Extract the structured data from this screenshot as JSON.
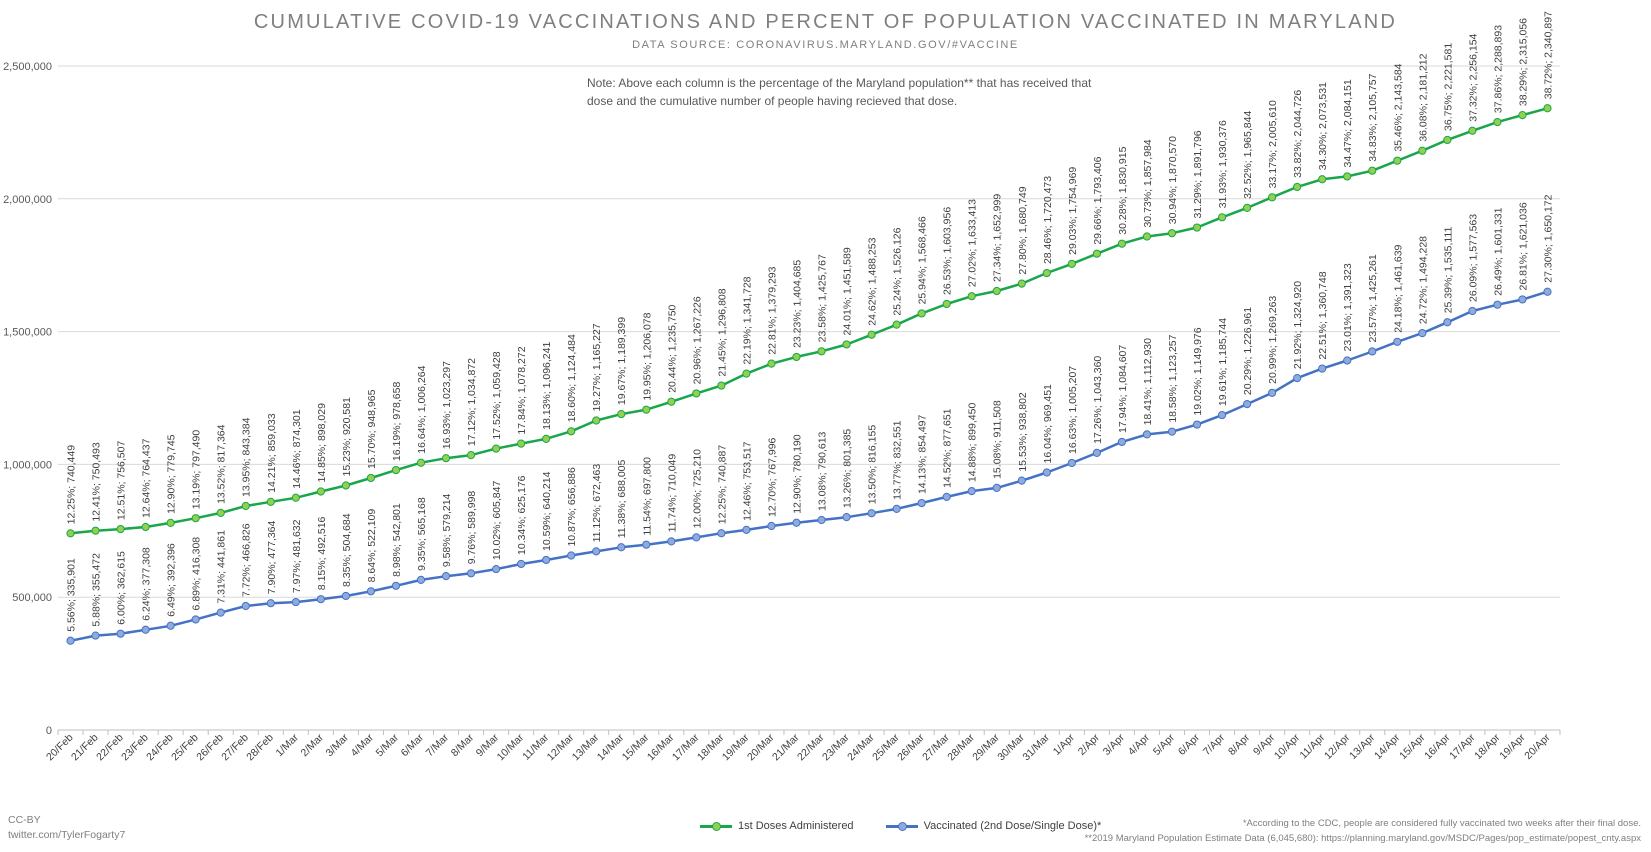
{
  "title": "CUMULATIVE COVID-19 VACCINATIONS AND PERCENT OF POPULATION VACCINATED IN MARYLAND",
  "subtitle": "DATA SOURCE: CORONAVIRUS.MARYLAND.GOV/#VACCINE",
  "note": "Note: Above each column is the percentage of the Maryland population** that has received that dose and the cumulative number of people having recieved that dose.",
  "credit_line1": "CC-BY",
  "credit_line2": "twitter.com/TylerFogarty7",
  "footnote1": "*According to the CDC, people are considered fully vaccinated two weeks after their final dose.",
  "footnote2": "**2019 Maryland Population Estimate Data (6,045,680): https://planning.maryland.gov/MSDC/Pages/pop_estimate/popest_cnty.aspx",
  "colors": {
    "first_line": "#1aa64b",
    "first_marker": "#92d050",
    "second_line": "#4472c4",
    "second_marker": "#8faadc",
    "grid": "#d9d9d9",
    "axis_text": "#595959",
    "label_text": "#404040"
  },
  "chart_data": {
    "type": "line",
    "title": "CUMULATIVE COVID-19 VACCINATIONS AND PERCENT OF POPULATION VACCINATED IN MARYLAND",
    "xlabel": "",
    "ylabel": "",
    "ylim": [
      0,
      2500000
    ],
    "yticks": [
      0,
      500000,
      1000000,
      1500000,
      2000000,
      2500000
    ],
    "ytick_labels": [
      "0",
      "500,000",
      "1,000,000",
      "1,500,000",
      "2,000,000",
      "2,500,000"
    ],
    "grid": true,
    "legend_position": "bottom",
    "categories": [
      "20/Feb",
      "21/Feb",
      "22/Feb",
      "23/Feb",
      "24/Feb",
      "25/Feb",
      "26/Feb",
      "27/Feb",
      "28/Feb",
      "1/Mar",
      "2/Mar",
      "3/Mar",
      "4/Mar",
      "5/Mar",
      "6/Mar",
      "7/Mar",
      "8/Mar",
      "9/Mar",
      "10/Mar",
      "11/Mar",
      "12/Mar",
      "13/Mar",
      "14/Mar",
      "15/Mar",
      "16/Mar",
      "17/Mar",
      "18/Mar",
      "19/Mar",
      "20/Mar",
      "21/Mar",
      "22/Mar",
      "23/Mar",
      "24/Mar",
      "25/Mar",
      "26/Mar",
      "27/Mar",
      "28/Mar",
      "29/Mar",
      "30/Mar",
      "31/Mar",
      "1/Apr",
      "2/Apr",
      "3/Apr",
      "4/Apr",
      "5/Apr",
      "6/Apr",
      "7/Apr",
      "8/Apr",
      "9/Apr",
      "10/Apr",
      "11/Apr",
      "12/Apr",
      "13/Apr",
      "14/Apr",
      "15/Apr",
      "16/Apr",
      "17/Apr",
      "18/Apr",
      "19/Apr",
      "20/Apr"
    ],
    "series": [
      {
        "name": "1st Doses Administered",
        "values": [
          740449,
          750493,
          756507,
          764437,
          779745,
          797490,
          817364,
          843384,
          859033,
          874301,
          898029,
          920581,
          948965,
          978658,
          1006264,
          1023297,
          1034872,
          1059428,
          1078272,
          1096241,
          1124484,
          1165227,
          1189399,
          1206078,
          1235750,
          1267226,
          1296808,
          1341728,
          1379293,
          1404685,
          1425767,
          1451589,
          1488253,
          1526126,
          1568466,
          1603956,
          1633413,
          1652999,
          1680749,
          1720473,
          1754969,
          1793406,
          1830915,
          1857984,
          1870570,
          1891796,
          1930376,
          1965844,
          2005610,
          2044726,
          2073531,
          2084151,
          2105757,
          2143584,
          2181212,
          2221581,
          2256154,
          2288893,
          2315056,
          2340897
        ],
        "labels": [
          "12.25%; 740,449",
          "12.41%; 750,493",
          "12.51%; 756,507",
          "12.64%; 764,437",
          "12.90%; 779,745",
          "13.19%; 797,490",
          "13.52%; 817,364",
          "13.95%; 843,384",
          "14.21%; 859,033",
          "14.46%; 874,301",
          "14.85%; 898,029",
          "15.23%; 920,581",
          "15.70%; 948,965",
          "16.19%; 978,658",
          "16.64%; 1,006,264",
          "16.93%; 1,023,297",
          "17.12%; 1,034,872",
          "17.52%; 1,059,428",
          "17.84%; 1,078,272",
          "18.13%; 1,096,241",
          "18.60%; 1,124,484",
          "19.27%; 1,165,227",
          "19.67%; 1,189,399",
          "19.95%; 1,206,078",
          "20.44%; 1,235,750",
          "20.96%; 1,267,226",
          "21.45%; 1,296,808",
          "22.19%; 1,341,728",
          "22.81%; 1,379,293",
          "23.23%; 1,404,685",
          "23.58%; 1,425,767",
          "24.01%; 1,451,589",
          "24.62%; 1,488,253",
          "25.24%; 1,526,126",
          "25.94%; 1,568,466",
          "26.53%; 1,603,956",
          "27.02%; 1,633,413",
          "27.34%; 1,652,999",
          "27.80%; 1,680,749",
          "28.46%; 1,720,473",
          "29.03%; 1,754,969",
          "29.66%; 1,793,406",
          "30.28%; 1,830,915",
          "30.73%; 1,857,984",
          "30.94%; 1,870,570",
          "31.29%; 1,891,796",
          "31.93%; 1,930,376",
          "32.52%; 1,965,844",
          "33.17%; 2,005,610",
          "33.82%; 2,044,726",
          "34.30%; 2,073,531",
          "34.47%; 2,084,151",
          "34.83%; 2,105,757",
          "35.46%; 2,143,584",
          "36.08%; 2,181,212",
          "36.75%; 2,221,581",
          "37.32%; 2,256,154",
          "37.86%; 2,288,893",
          "38.29%; 2,315,056",
          "38.72%; 2,340,897"
        ]
      },
      {
        "name": "Vaccinated (2nd Dose/Single Dose)*",
        "values": [
          335901,
          355472,
          362615,
          377308,
          392396,
          416308,
          441861,
          466826,
          477364,
          481632,
          492516,
          504684,
          522109,
          542801,
          565168,
          579214,
          589998,
          605847,
          625176,
          640214,
          656886,
          672463,
          688005,
          697800,
          710049,
          725210,
          740887,
          753517,
          767996,
          780190,
          790613,
          801385,
          816155,
          832551,
          854497,
          877651,
          899450,
          911508,
          938802,
          969451,
          1005207,
          1043360,
          1084607,
          1112930,
          1123257,
          1149976,
          1185744,
          1226961,
          1269263,
          1324920,
          1360748,
          1391323,
          1425261,
          1461639,
          1494228,
          1535111,
          1577563,
          1601331,
          1621036,
          1650172
        ],
        "labels": [
          "5.56%; 335,901",
          "5.88%; 355,472",
          "6.00%; 362,615",
          "6.24%; 377,308",
          "6.49%; 392,396",
          "6.89%; 416,308",
          "7.31%; 441,861",
          "7.72%; 466,826",
          "7.90%; 477,364",
          "7.97%; 481,632",
          "8.15%; 492,516",
          "8.35%; 504,684",
          "8.64%; 522,109",
          "8.98%; 542,801",
          "9.35%; 565,168",
          "9.58%; 579,214",
          "9.76%; 589,998",
          "10.02%; 605,847",
          "10.34%; 625,176",
          "10.59%; 640,214",
          "10.87%; 656,886",
          "11.12%; 672,463",
          "11.38%; 688,005",
          "11.54%; 697,800",
          "11.74%; 710,049",
          "12.00%; 725,210",
          "12.25%; 740,887",
          "12.46%; 753,517",
          "12.70%; 767,996",
          "12.90%; 780,190",
          "13.08%; 790,613",
          "13.26%; 801,385",
          "13.50%; 816,155",
          "13.77%; 832,551",
          "14.13%; 854,497",
          "14.52%; 877,651",
          "14.88%; 899,450",
          "15.08%; 911,508",
          "15.53%; 938,802",
          "16.04%; 969,451",
          "16.63%; 1,005,207",
          "17.26%; 1,043,360",
          "17.94%; 1,084,607",
          "18.41%; 1,112,930",
          "18.58%; 1,123,257",
          "19.02%; 1,149,976",
          "19.61%; 1,185,744",
          "20.29%; 1,226,961",
          "20.99%; 1,269,263",
          "21.92%; 1,324,920",
          "22.51%; 1,360,748",
          "23.01%; 1,391,323",
          "23.57%; 1,425,261",
          "24.18%; 1,461,639",
          "24.72%; 1,494,228",
          "25.39%; 1,535,111",
          "26.09%; 1,577,563",
          "26.49%; 1,601,331",
          "26.81%; 1,621,036",
          "27.30%; 1,650,172"
        ]
      }
    ]
  }
}
